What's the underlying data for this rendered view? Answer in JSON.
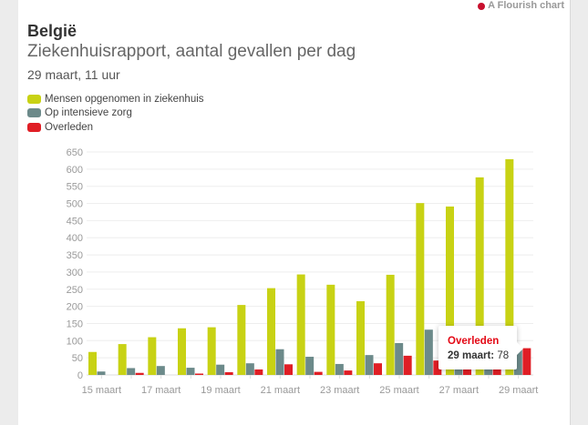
{
  "credit": "A Flourish chart",
  "title": "België",
  "subtitle": "Ziekenhuisrapport, aantal gevallen per dag",
  "note": "29 maart, 11 uur",
  "tooltip": {
    "series": "Overleden",
    "date": "29 maart:",
    "value": "78"
  },
  "chart_data": {
    "type": "bar",
    "title": "Ziekenhuisrapport, aantal gevallen per dag",
    "categories": [
      "15 maart",
      "16 maart",
      "17 maart",
      "18 maart",
      "19 maart",
      "20 maart",
      "21 maart",
      "22 maart",
      "23 maart",
      "24 maart",
      "25 maart",
      "26 maart",
      "27 maart",
      "28 maart",
      "29 maart"
    ],
    "x_tick_labels": [
      "15 maart",
      "17 maart",
      "19 maart",
      "21 maart",
      "23 maart",
      "25 maart",
      "27 maart",
      "29 maart"
    ],
    "y_ticks": [
      0,
      50,
      100,
      150,
      200,
      250,
      300,
      350,
      400,
      450,
      500,
      550,
      600,
      650
    ],
    "ylim": [
      0,
      650
    ],
    "grid": true,
    "legend_placement": "top-left",
    "series": [
      {
        "name": "Mensen opgenomen in ziekenhuis",
        "color": "#c8d214",
        "values": [
          67,
          90,
          110,
          136,
          139,
          204,
          253,
          293,
          263,
          215,
          292,
          501,
          491,
          576,
          629
        ]
      },
      {
        "name": "Op intensieve zorg",
        "color": "#6c8a8a",
        "values": [
          10,
          20,
          26,
          21,
          30,
          34,
          75,
          53,
          32,
          58,
          93,
          132,
          125,
          130,
          75
        ]
      },
      {
        "name": "Overleden",
        "color": "#e01e25",
        "values": [
          0,
          6,
          0,
          4,
          8,
          16,
          31,
          9,
          13,
          34,
          56,
          42,
          38,
          69,
          78
        ]
      }
    ]
  }
}
